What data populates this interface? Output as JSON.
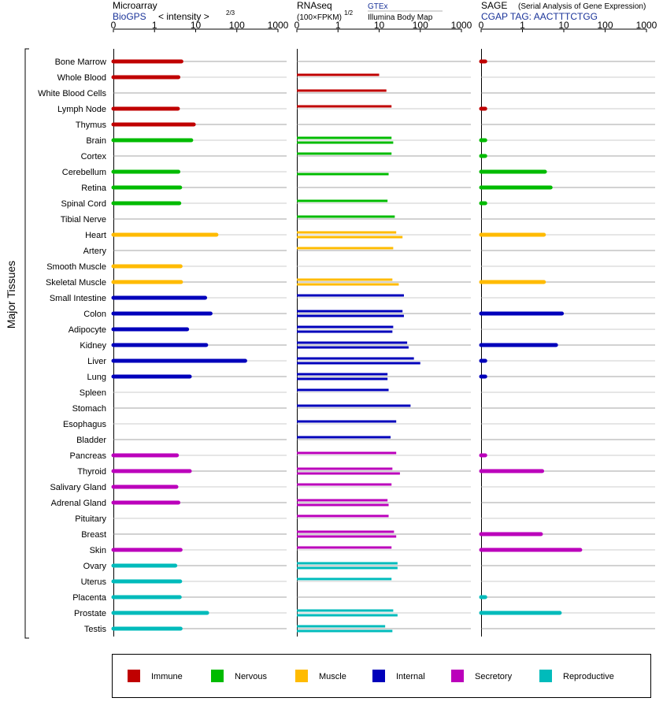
{
  "panels": {
    "microarray": {
      "title": "Microarray",
      "source": "BioGPS",
      "unit_label": "< intensity >",
      "unit_exponent": "2/3"
    },
    "rnaseq": {
      "title": "RNAseq",
      "unit_label": "(100×FPKM)",
      "unit_exponent": "1/2",
      "source_1": "GTEx",
      "source_2": "Illumina Body Map"
    },
    "sage": {
      "title": "SAGE",
      "subtitle": "(Serial Analysis of Gene Expression)",
      "tag": "CGAP TAG: AACTTTCTGG"
    }
  },
  "axis_ticks": [
    "0",
    "1",
    "10",
    "100",
    "1000"
  ],
  "y_axis_label": "Major Tissues",
  "legend": [
    {
      "label": "Immune",
      "color": "#c00000"
    },
    {
      "label": "Nervous",
      "color": "#00bb00"
    },
    {
      "label": "Muscle",
      "color": "#ffbb00"
    },
    {
      "label": "Internal",
      "color": "#0000bb"
    },
    {
      "label": "Secretory",
      "color": "#bb00bb"
    },
    {
      "label": "Reproductive",
      "color": "#00bbbb"
    }
  ],
  "chart_data": {
    "type": "bar",
    "scale": "log-like (0, 1, 10, 100, 1000)",
    "xlim": [
      0,
      1000
    ],
    "categories": [
      "Bone Marrow",
      "Whole Blood",
      "White Blood Cells",
      "Lymph Node",
      "Thymus",
      "Brain",
      "Cortex",
      "Cerebellum",
      "Retina",
      "Spinal Cord",
      "Tibial Nerve",
      "Heart",
      "Artery",
      "Smooth Muscle",
      "Skeletal Muscle",
      "Small Intestine",
      "Colon",
      "Adipocyte",
      "Kidney",
      "Liver",
      "Lung",
      "Spleen",
      "Stomach",
      "Esophagus",
      "Bladder",
      "Pancreas",
      "Thyroid",
      "Salivary Gland",
      "Adrenal Gland",
      "Pituitary",
      "Breast",
      "Skin",
      "Ovary",
      "Uterus",
      "Placenta",
      "Prostate",
      "Testis"
    ],
    "groups": [
      "Immune",
      "Immune",
      "Immune",
      "Immune",
      "Immune",
      "Nervous",
      "Nervous",
      "Nervous",
      "Nervous",
      "Nervous",
      "Nervous",
      "Muscle",
      "Muscle",
      "Muscle",
      "Muscle",
      "Internal",
      "Internal",
      "Internal",
      "Internal",
      "Internal",
      "Internal",
      "Internal",
      "Internal",
      "Internal",
      "Internal",
      "Secretory",
      "Secretory",
      "Secretory",
      "Secretory",
      "Secretory",
      "Secretory",
      "Secretory",
      "Reproductive",
      "Reproductive",
      "Reproductive",
      "Reproductive",
      "Reproductive"
    ],
    "microarray": [
      4.5,
      3.8,
      null,
      3.7,
      9.0,
      7.8,
      null,
      3.8,
      4.2,
      4.0,
      null,
      32,
      null,
      4.3,
      4.4,
      17,
      23,
      6.2,
      18,
      160,
      7.2,
      null,
      null,
      null,
      null,
      3.5,
      7.2,
      3.4,
      3.8,
      null,
      null,
      4.3,
      3.2,
      4.2,
      4.1,
      19,
      4.3
    ],
    "rnaseq_gtex": [
      null,
      10,
      15,
      20,
      null,
      20,
      20,
      null,
      null,
      16,
      24,
      26,
      22,
      null,
      21,
      40,
      37,
      22,
      48,
      70,
      16,
      17,
      58,
      26,
      19,
      26,
      21,
      20,
      16,
      17,
      23,
      20,
      28,
      20,
      null,
      22,
      14
    ],
    "rnaseq_ibm": [
      null,
      null,
      null,
      null,
      null,
      22,
      null,
      17,
      null,
      null,
      null,
      37,
      null,
      null,
      30,
      null,
      40,
      21,
      52,
      100,
      16,
      null,
      null,
      null,
      null,
      null,
      32,
      null,
      17,
      null,
      26,
      null,
      28,
      null,
      null,
      28,
      21
    ],
    "sage": [
      0.1,
      null,
      null,
      0.1,
      null,
      0.1,
      0.1,
      3.5,
      4.8,
      0.1,
      null,
      3.3,
      null,
      null,
      3.3,
      null,
      9.0,
      null,
      6.5,
      0.1,
      0.1,
      null,
      null,
      null,
      null,
      0.1,
      3.0,
      null,
      null,
      null,
      2.8,
      25,
      null,
      null,
      0.1,
      8.0,
      null
    ]
  }
}
